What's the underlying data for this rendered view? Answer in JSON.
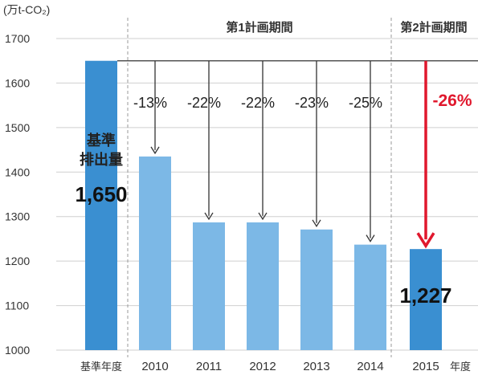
{
  "chart_data": {
    "type": "bar",
    "unit_label": "(万t-CO₂)",
    "ylim": [
      1000,
      1700
    ],
    "yticks": [
      1000,
      1100,
      1200,
      1300,
      1400,
      1500,
      1600,
      1700
    ],
    "grid": true,
    "categories": [
      "基準年度",
      "2010",
      "2011",
      "2012",
      "2013",
      "2014",
      "2015"
    ],
    "values": [
      1650,
      1435,
      1287,
      1287,
      1271,
      1237,
      1227
    ],
    "percent_labels": [
      "",
      "-13%",
      "-22%",
      "-22%",
      "-23%",
      "-25%",
      "-26%"
    ],
    "axis_suffix": "年度",
    "period_labels": [
      "第1計画期間",
      "第2計画期間"
    ],
    "base_label_lines": [
      "基準",
      "排出量"
    ],
    "base_value_label": "1,650",
    "last_value_label": "1,227",
    "colors": {
      "base_bar": "#3a8fd1",
      "period1_bar": "#7cb8e6",
      "last_bar": "#3a8fd1",
      "highlight": "#e0182d",
      "grid": "#cfcfcf",
      "text": "#333333"
    }
  }
}
